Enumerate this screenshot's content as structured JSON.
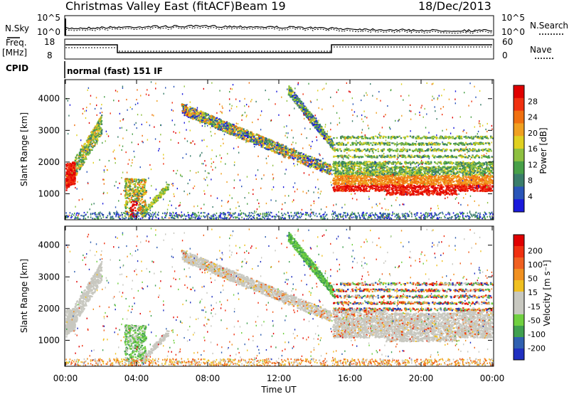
{
  "header": {
    "title": "Christmas Valley East (fitACF)",
    "beam": "Beam 19",
    "date": "18/Dec/2013"
  },
  "panels": {
    "nsky": {
      "label": "N.Sky",
      "right_label": "N.Search",
      "y_ticks": [
        "10^5",
        "10^0"
      ]
    },
    "freq": {
      "label_line1": "Freq.",
      "label_line2": "[MHz]",
      "right_label": "Nave",
      "left_ticks": [
        "18",
        "8"
      ],
      "right_ticks": [
        "60",
        "0"
      ]
    },
    "cpid": {
      "label": "CPID",
      "mode": "normal (fast) 151 IF"
    }
  },
  "chart_data": [
    {
      "type": "heatmap",
      "name": "power",
      "ylabel": "Slant Range [km]",
      "y_ticks": [
        1000,
        2000,
        3000,
        4000
      ],
      "ylim": [
        180,
        4600
      ],
      "colorbar": {
        "label": "Power [dB]",
        "ticks": [
          4,
          8,
          12,
          16,
          20,
          24,
          28
        ],
        "colors": [
          "#1a1adc",
          "#2a55b8",
          "#3a7d6a",
          "#48a048",
          "#8ec040",
          "#e0d020",
          "#f0a020",
          "#f07010",
          "#f03010",
          "#e00000"
        ]
      }
    },
    {
      "type": "heatmap",
      "name": "velocity",
      "ylabel": "Slant Range [km]",
      "y_ticks": [
        1000,
        2000,
        3000,
        4000
      ],
      "ylim": [
        180,
        4600
      ],
      "colorbar": {
        "label": "Velocity [m s⁻¹]",
        "ticks": [
          200,
          100,
          50,
          15,
          -15,
          -50,
          -100,
          -200
        ],
        "colors": [
          "#2030c0",
          "#3060b0",
          "#40a050",
          "#70d040",
          "#c8c8c0",
          "#c8c8c0",
          "#f0c020",
          "#f09020",
          "#f06020",
          "#f03010",
          "#e00000"
        ]
      }
    }
  ],
  "x_axis": {
    "label": "Time UT",
    "ticks": [
      "00:00",
      "04:00",
      "08:00",
      "12:00",
      "16:00",
      "20:00",
      "00:00"
    ]
  }
}
